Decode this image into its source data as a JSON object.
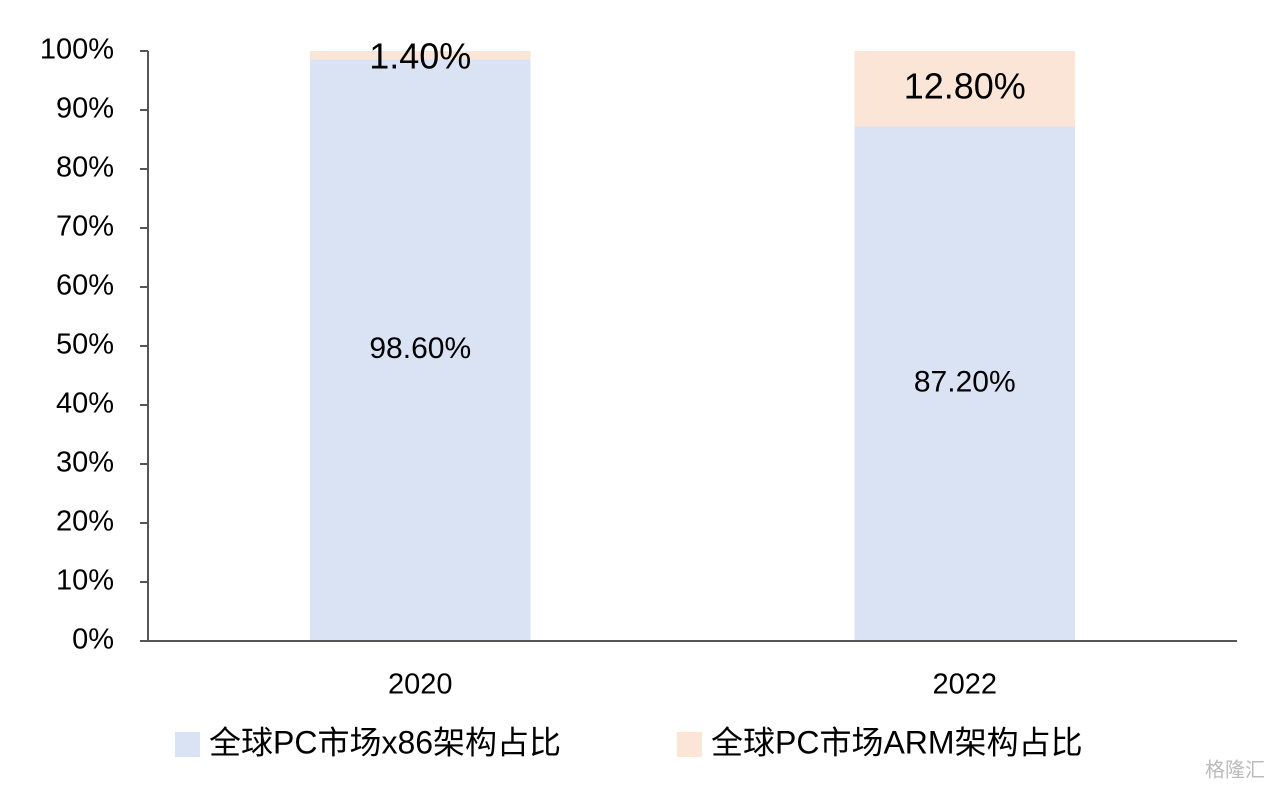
{
  "chart_data": {
    "type": "stacked_bar",
    "categories": [
      "2020",
      "2022"
    ],
    "series": [
      {
        "name": "全球PC市场x86架构占比",
        "color": "#dae3f3",
        "values": [
          98.6,
          87.2
        ],
        "value_labels": [
          "98.60%",
          "87.20%"
        ]
      },
      {
        "name": "全球PC市场ARM架构占比",
        "color": "#fbe5d6",
        "values": [
          1.4,
          12.8
        ],
        "value_labels": [
          "1.40%",
          "12.80%"
        ]
      }
    ],
    "ylim": [
      0,
      100
    ],
    "yticks": [
      {
        "value": 0,
        "label": "0%"
      },
      {
        "value": 10,
        "label": "10%"
      },
      {
        "value": 20,
        "label": "20%"
      },
      {
        "value": 30,
        "label": "30%"
      },
      {
        "value": 40,
        "label": "40%"
      },
      {
        "value": 50,
        "label": "50%"
      },
      {
        "value": 60,
        "label": "60%"
      },
      {
        "value": 70,
        "label": "70%"
      },
      {
        "value": 80,
        "label": "80%"
      },
      {
        "value": 90,
        "label": "90%"
      },
      {
        "value": 100,
        "label": "100%"
      }
    ],
    "legend": "bottom",
    "watermark": "格隆汇"
  }
}
